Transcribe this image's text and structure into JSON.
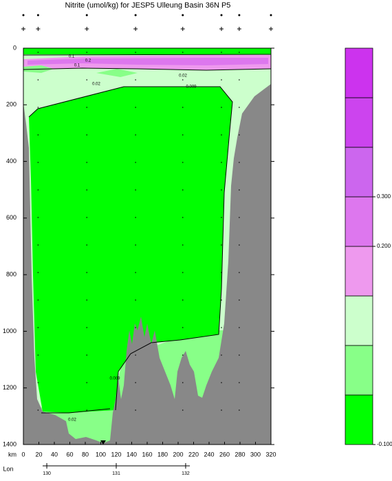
{
  "chart_data": {
    "type": "section",
    "title": "Nitrite (umol/kg) for JESP5 Ulleung Basin 36N P5",
    "x_label": "km",
    "xlim": [
      0,
      320
    ],
    "xticks": [
      0,
      20,
      40,
      60,
      80,
      100,
      120,
      140,
      160,
      180,
      200,
      220,
      240,
      260,
      280,
      300,
      320
    ],
    "ylim": [
      0,
      1400
    ],
    "yticks": [
      0,
      200,
      400,
      600,
      800,
      1000,
      1200,
      1400
    ],
    "lon_label": "Lon",
    "lonlim": [
      129.94,
      132.06
    ],
    "lon_ticks": [
      130,
      131,
      132
    ],
    "stations_km": [
      0,
      19,
      82,
      145,
      206,
      256,
      279,
      320
    ],
    "contour_labels": [
      "0.1",
      "0.2",
      "0.1",
      "0.02",
      "0.02",
      "0.009",
      "0.009",
      "0.02"
    ],
    "colorbar": {
      "colors": [
        "#00ff00",
        "#88ff88",
        "#ccffcc",
        "#ee99ee",
        "#dd77ee",
        "#cc66ee",
        "#cc44ee",
        "#cc33ee"
      ],
      "levels": [
        {
          "value": -0.1,
          "label": "-0.100"
        },
        null,
        null,
        null,
        {
          "value": 0.2,
          "label": "0.200"
        },
        {
          "value": 0.3,
          "label": "0.300"
        },
        null,
        null,
        null
      ]
    }
  }
}
